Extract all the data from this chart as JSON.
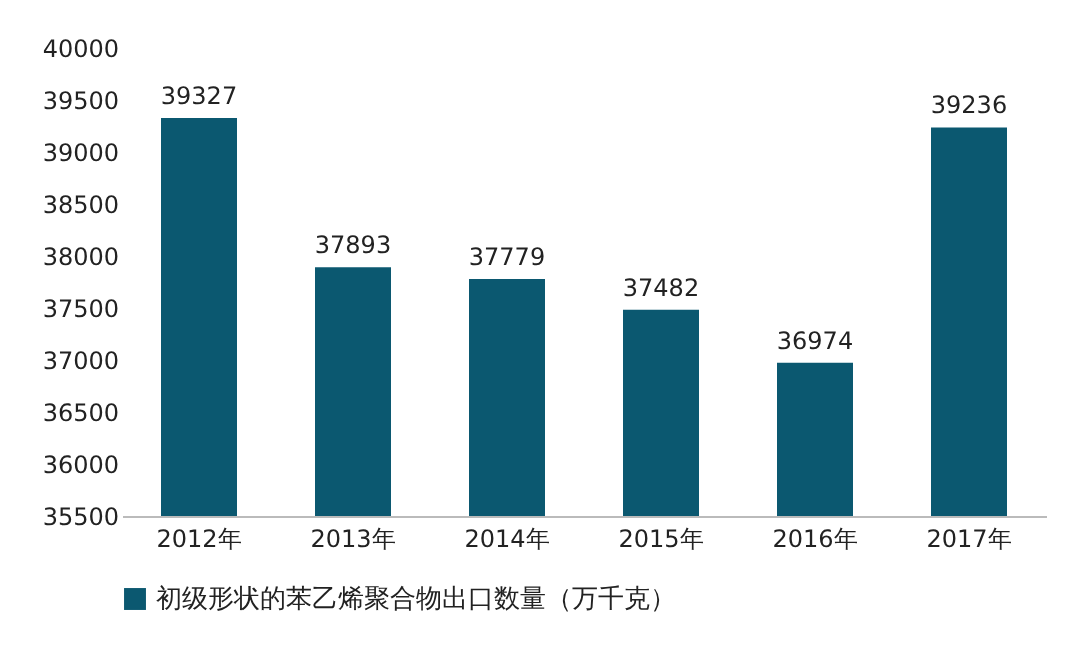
{
  "chart_data": {
    "type": "bar",
    "categories": [
      "2012年",
      "2013年",
      "2014年",
      "2015年",
      "2016年",
      "2017年"
    ],
    "series": [
      {
        "name": "初级形状的苯乙烯聚合物出口数量（万千克）",
        "color": "#0b5870",
        "values": [
          39327,
          37893,
          37779,
          37482,
          36974,
          39236
        ]
      }
    ],
    "ylim": [
      35500,
      40000
    ],
    "yticks": [
      35500,
      36000,
      36500,
      37000,
      37500,
      38000,
      38500,
      39000,
      39500,
      40000
    ],
    "data_labels": true,
    "grid": false,
    "legend": "bottom"
  }
}
